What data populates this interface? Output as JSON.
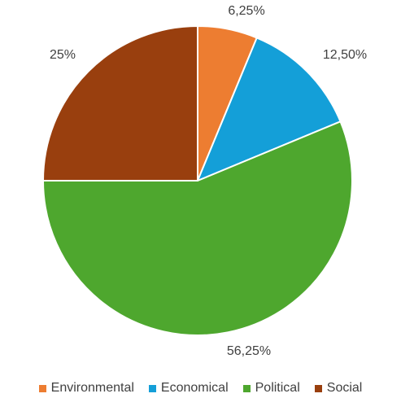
{
  "chart_data": {
    "type": "pie",
    "title": "",
    "categories": [
      "Environmental",
      "Economical",
      "Political",
      "Social"
    ],
    "values": [
      6.25,
      12.5,
      56.25,
      25
    ],
    "labels": [
      "6,25%",
      "12,50%",
      "56,25%",
      "25%"
    ],
    "colors": [
      "#ED7D31",
      "#149FD8",
      "#4EA72E",
      "#993F0E"
    ],
    "start_angle": "12 o'clock",
    "direction": "clockwise",
    "legend": "bottom",
    "series": [
      {
        "values": [
          6.25,
          12.5,
          56.25,
          25
        ]
      }
    ]
  }
}
